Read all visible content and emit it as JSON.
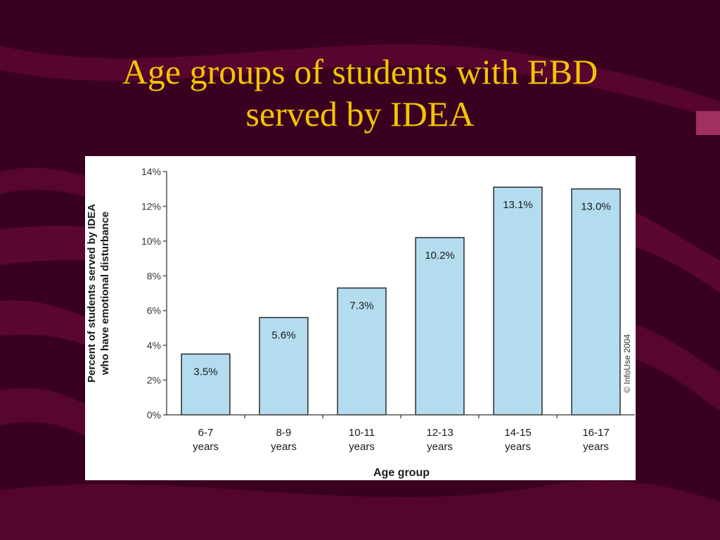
{
  "slide": {
    "title_line1": "Age groups of students with EBD",
    "title_line2": "served by IDEA"
  },
  "colors": {
    "background": "#3a0020",
    "wave": "#6a0a38",
    "title": "#f5c400",
    "bar_fill": "#b3dcef",
    "bar_stroke": "#2a2a2a"
  },
  "chart_data": {
    "type": "bar",
    "categories": [
      "6-7 years",
      "8-9 years",
      "10-11 years",
      "12-13 years",
      "14-15 years",
      "16-17 years"
    ],
    "category_lines": [
      [
        "6-7",
        "years"
      ],
      [
        "8-9",
        "years"
      ],
      [
        "10-11",
        "years"
      ],
      [
        "12-13",
        "years"
      ],
      [
        "14-15",
        "years"
      ],
      [
        "16-17",
        "years"
      ]
    ],
    "values": [
      3.5,
      5.6,
      7.3,
      10.2,
      13.1,
      13.0
    ],
    "data_labels": [
      "3.5%",
      "5.6%",
      "7.3%",
      "10.2%",
      "13.1%",
      "13.0%"
    ],
    "xlabel": "Age group",
    "ylabel_line1": "Percent of students served by IDEA",
    "ylabel_line2": "who have emotional disturbance",
    "ylim": [
      0,
      14
    ],
    "yticks": [
      0,
      2,
      4,
      6,
      8,
      10,
      12,
      14
    ],
    "ytick_labels": [
      "0%",
      "2%",
      "4%",
      "6%",
      "8%",
      "10%",
      "12%",
      "14%"
    ],
    "grid": false,
    "legend": "none",
    "copyright": "© InfoUse 2004"
  }
}
